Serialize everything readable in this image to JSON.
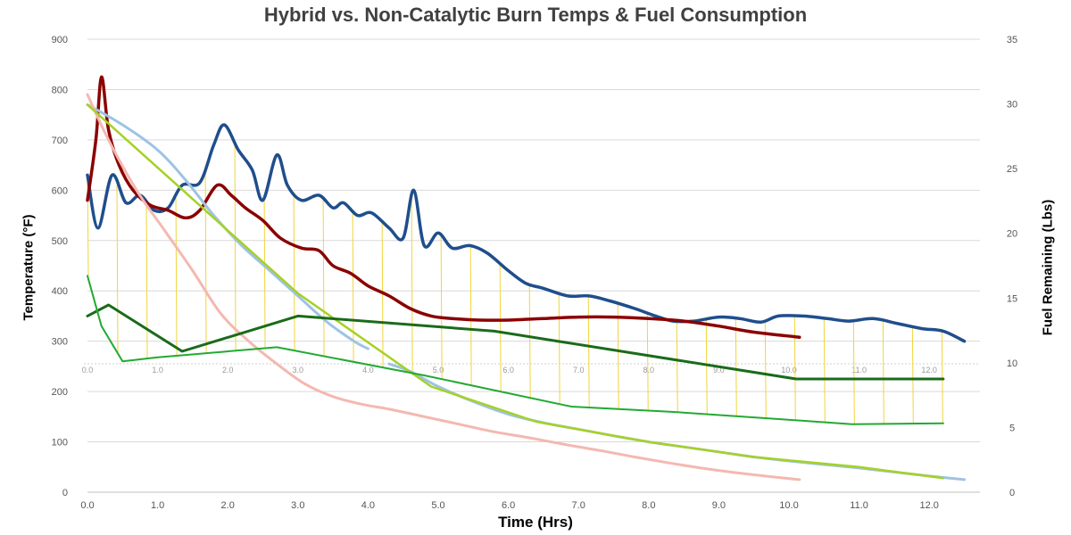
{
  "chart_data": {
    "type": "line",
    "title": "Hybrid vs. Non-Catalytic Burn Temps & Fuel Consumption",
    "xlabel": "Time (Hrs)",
    "ylabel_left": "Temperature (°F)",
    "ylabel_right": "Fuel Remaining (Lbs)",
    "xlim": [
      0,
      12.8
    ],
    "ylim_left": [
      0,
      900
    ],
    "ylim_right": [
      0,
      35
    ],
    "x_ticks": [
      "0.0",
      "1.0",
      "2.0",
      "3.0",
      "4.0",
      "5.0",
      "6.0",
      "7.0",
      "8.0",
      "9.0",
      "10.0",
      "11.0",
      "12.0"
    ],
    "y_left_ticks": [
      "0",
      "100",
      "200",
      "300",
      "400",
      "500",
      "600",
      "700",
      "800",
      "900"
    ],
    "y_right_ticks": [
      "0",
      "5",
      "10",
      "15",
      "20",
      "25",
      "30",
      "35"
    ],
    "grid": true,
    "legend": "none",
    "series": [
      {
        "axis": "left",
        "color": "#1f4e8c",
        "width": 3.5,
        "smooth": true,
        "points": [
          [
            0,
            630
          ],
          [
            0.15,
            525
          ],
          [
            0.35,
            630
          ],
          [
            0.55,
            575
          ],
          [
            0.75,
            590
          ],
          [
            0.95,
            560
          ],
          [
            1.15,
            565
          ],
          [
            1.35,
            610
          ],
          [
            1.6,
            615
          ],
          [
            1.8,
            690
          ],
          [
            1.95,
            730
          ],
          [
            2.15,
            680
          ],
          [
            2.35,
            640
          ],
          [
            2.5,
            580
          ],
          [
            2.7,
            670
          ],
          [
            2.85,
            610
          ],
          [
            3.05,
            580
          ],
          [
            3.3,
            590
          ],
          [
            3.5,
            565
          ],
          [
            3.65,
            575
          ],
          [
            3.85,
            550
          ],
          [
            4.05,
            555
          ],
          [
            4.3,
            525
          ],
          [
            4.5,
            505
          ],
          [
            4.65,
            600
          ],
          [
            4.8,
            490
          ],
          [
            5.0,
            515
          ],
          [
            5.2,
            485
          ],
          [
            5.45,
            490
          ],
          [
            5.7,
            475
          ],
          [
            6.0,
            440
          ],
          [
            6.25,
            415
          ],
          [
            6.5,
            405
          ],
          [
            6.85,
            390
          ],
          [
            7.15,
            390
          ],
          [
            7.45,
            380
          ],
          [
            7.8,
            365
          ],
          [
            8.1,
            350
          ],
          [
            8.35,
            340
          ],
          [
            8.65,
            340
          ],
          [
            9.0,
            348
          ],
          [
            9.3,
            345
          ],
          [
            9.6,
            338
          ],
          [
            9.85,
            350
          ],
          [
            10.2,
            350
          ],
          [
            10.55,
            345
          ],
          [
            10.85,
            340
          ],
          [
            11.2,
            345
          ],
          [
            11.55,
            335
          ],
          [
            11.9,
            325
          ],
          [
            12.2,
            320
          ],
          [
            12.5,
            300
          ]
        ]
      },
      {
        "axis": "left",
        "color": "#8b0000",
        "width": 3.5,
        "smooth": true,
        "points": [
          [
            0,
            580
          ],
          [
            0.12,
            700
          ],
          [
            0.2,
            825
          ],
          [
            0.3,
            720
          ],
          [
            0.45,
            650
          ],
          [
            0.65,
            600
          ],
          [
            0.9,
            570
          ],
          [
            1.15,
            560
          ],
          [
            1.4,
            545
          ],
          [
            1.6,
            560
          ],
          [
            1.85,
            610
          ],
          [
            2.05,
            590
          ],
          [
            2.25,
            565
          ],
          [
            2.5,
            540
          ],
          [
            2.75,
            505
          ],
          [
            3.05,
            485
          ],
          [
            3.3,
            480
          ],
          [
            3.5,
            450
          ],
          [
            3.75,
            435
          ],
          [
            4.0,
            410
          ],
          [
            4.3,
            390
          ],
          [
            4.6,
            365
          ],
          [
            4.9,
            350
          ],
          [
            5.2,
            345
          ],
          [
            5.6,
            342
          ],
          [
            6.0,
            342
          ],
          [
            6.5,
            345
          ],
          [
            7.0,
            348
          ],
          [
            7.5,
            348
          ],
          [
            8.0,
            345
          ],
          [
            8.5,
            340
          ],
          [
            9.0,
            330
          ],
          [
            9.5,
            318
          ],
          [
            10.15,
            308
          ]
        ]
      },
      {
        "axis": "left",
        "color": "#9dc3e6",
        "width": 3,
        "smooth": true,
        "points": [
          [
            0,
            770
          ],
          [
            0.5,
            730
          ],
          [
            1.0,
            680
          ],
          [
            1.4,
            620
          ],
          [
            1.8,
            550
          ],
          [
            2.2,
            490
          ],
          [
            2.6,
            440
          ],
          [
            3.0,
            390
          ],
          [
            3.4,
            340
          ],
          [
            3.8,
            300
          ],
          [
            4.0,
            285
          ]
        ]
      },
      {
        "axis": "left",
        "color": "#9dc3e6",
        "width": 3,
        "smooth": true,
        "points": [
          [
            4.3,
            255
          ],
          [
            4.6,
            240
          ],
          [
            5.0,
            210
          ],
          [
            5.5,
            180
          ],
          [
            6.0,
            155
          ],
          [
            6.5,
            138
          ],
          [
            7.0,
            125
          ],
          [
            7.5,
            112
          ],
          [
            8.0,
            100
          ],
          [
            8.5,
            90
          ],
          [
            9.0,
            80
          ],
          [
            9.5,
            70
          ],
          [
            10.0,
            62
          ],
          [
            10.5,
            55
          ],
          [
            11.0,
            48
          ],
          [
            11.5,
            40
          ],
          [
            12.0,
            32
          ],
          [
            12.5,
            25
          ]
        ]
      },
      {
        "axis": "left",
        "color": "#f4b8b0",
        "width": 3,
        "smooth": true,
        "points": [
          [
            0,
            790
          ],
          [
            0.3,
            700
          ],
          [
            0.7,
            600
          ],
          [
            1.1,
            520
          ],
          [
            1.5,
            440
          ],
          [
            1.9,
            355
          ],
          [
            2.3,
            300
          ],
          [
            2.7,
            255
          ],
          [
            3.1,
            215
          ],
          [
            3.5,
            190
          ],
          [
            3.9,
            175
          ],
          [
            4.3,
            165
          ],
          [
            4.8,
            150
          ],
          [
            5.3,
            135
          ],
          [
            5.8,
            120
          ],
          [
            6.3,
            108
          ],
          [
            6.8,
            95
          ],
          [
            7.3,
            83
          ],
          [
            7.8,
            70
          ],
          [
            8.3,
            58
          ],
          [
            8.8,
            47
          ],
          [
            9.3,
            38
          ],
          [
            9.8,
            30
          ],
          [
            10.15,
            25
          ]
        ]
      },
      {
        "axis": "left",
        "color": "#a6d124",
        "width": 2.5,
        "smooth": false,
        "points": [
          [
            0,
            770
          ],
          [
            3.0,
            395
          ],
          [
            4.9,
            210
          ],
          [
            6.4,
            140
          ],
          [
            8.0,
            100
          ],
          [
            9.5,
            70
          ],
          [
            11.0,
            50
          ],
          [
            12.2,
            28
          ]
        ]
      },
      {
        "axis": "left",
        "color": "#1a6b1a",
        "width": 3,
        "smooth": false,
        "points": [
          [
            0,
            350
          ],
          [
            0.3,
            372
          ],
          [
            1.35,
            280
          ],
          [
            3.0,
            350
          ],
          [
            5.8,
            320
          ],
          [
            10.1,
            225
          ],
          [
            12.2,
            225
          ]
        ]
      },
      {
        "axis": "left",
        "color": "#22aa33",
        "width": 2,
        "smooth": false,
        "points": [
          [
            0,
            430
          ],
          [
            0.2,
            330
          ],
          [
            0.5,
            260
          ],
          [
            1.0,
            268
          ],
          [
            2.7,
            288
          ],
          [
            4.8,
            232
          ],
          [
            6.9,
            170
          ],
          [
            8.3,
            160
          ],
          [
            9.9,
            145
          ],
          [
            10.9,
            135
          ],
          [
            12.2,
            137
          ]
        ]
      }
    ],
    "annotations": [
      "fine yellow vertical hatch lines connecting the temperature and fuel curves"
    ]
  }
}
